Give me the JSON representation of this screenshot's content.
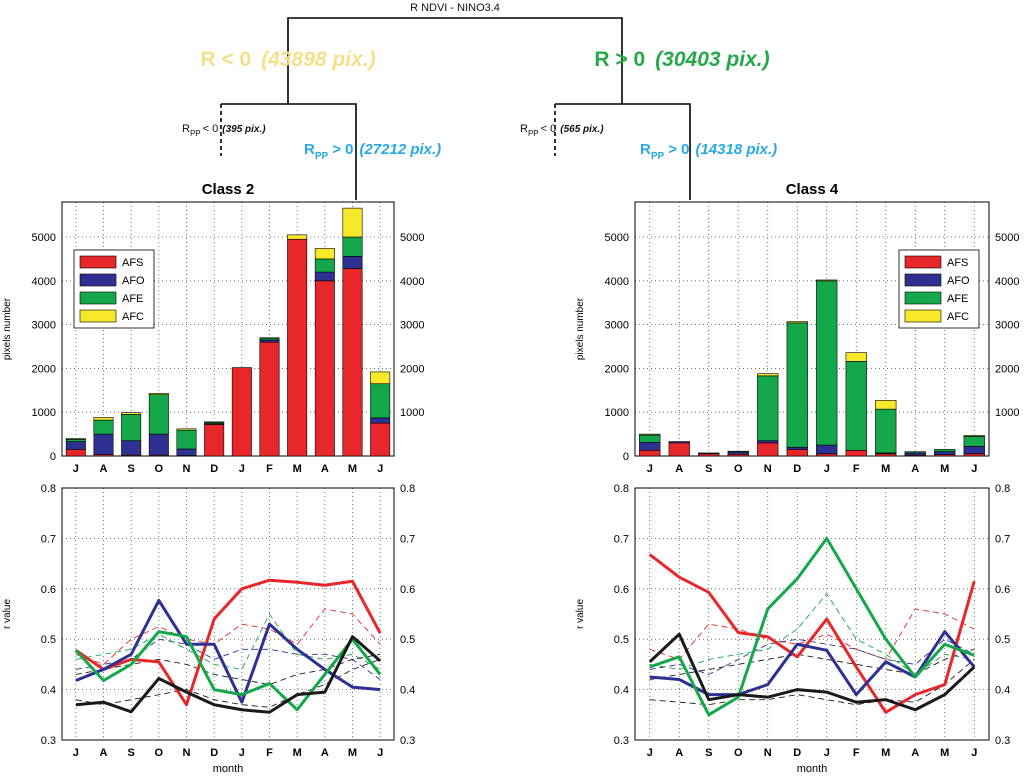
{
  "colors": {
    "AFS": "#e8272a",
    "AFO": "#2e3192",
    "AFE": "#14a84a",
    "AFC": "#f7e82a",
    "black": "#1a1a1a",
    "negative": "#f5e08a",
    "positive": "#24a84a",
    "rpp": "#27a9e1"
  },
  "tree": {
    "root": "R NDVI - NINO3.4",
    "left": {
      "label": "R < 0",
      "count": "(43898 pix.)"
    },
    "right": {
      "label": "R > 0",
      "count": "(30403 pix.)"
    },
    "left_neg": {
      "r": "R",
      "sub": "PP",
      "rest": "< 0",
      "count": "(395 pix.)"
    },
    "left_pos": {
      "r": "R",
      "sub": "PP",
      "rest": "> 0",
      "count": "(27212 pix.)"
    },
    "right_neg": {
      "r": "R",
      "sub": "PP",
      "rest": "< 0",
      "count": "(565 pix.)"
    },
    "right_pos": {
      "r": "R",
      "sub": "PP",
      "rest": "> 0",
      "count": "(14318 pix.)"
    }
  },
  "chart_data": [
    {
      "type": "bar",
      "title": "Class 2",
      "ylabel": "pixels number",
      "ylim": [
        0,
        5800
      ],
      "yticks": [
        0,
        1000,
        2000,
        3000,
        4000,
        5000
      ],
      "right_yticks": [
        1000,
        2000,
        3000,
        4000,
        5000
      ],
      "categories": [
        "J",
        "A",
        "S",
        "O",
        "N",
        "D",
        "J",
        "F",
        "M",
        "A",
        "M",
        "J"
      ],
      "legend": "upper-left",
      "series": [
        {
          "name": "AFS",
          "values": [
            150,
            30,
            20,
            20,
            10,
            720,
            2020,
            2600,
            4950,
            4000,
            4280,
            750
          ]
        },
        {
          "name": "AFO",
          "values": [
            180,
            470,
            330,
            480,
            150,
            20,
            0,
            50,
            0,
            200,
            280,
            120
          ]
        },
        {
          "name": "AFE",
          "values": [
            50,
            320,
            600,
            900,
            430,
            30,
            0,
            40,
            0,
            300,
            440,
            780
          ]
        },
        {
          "name": "AFC",
          "values": [
            20,
            60,
            40,
            30,
            30,
            10,
            0,
            10,
            100,
            240,
            660,
            270
          ]
        }
      ]
    },
    {
      "type": "bar",
      "title": "Class 4",
      "ylabel": "pixels number",
      "ylim": [
        0,
        5800
      ],
      "yticks": [
        0,
        1000,
        2000,
        3000,
        4000,
        5000
      ],
      "right_yticks": [
        1000,
        2000,
        3000,
        4000,
        5000
      ],
      "categories": [
        "J",
        "A",
        "S",
        "O",
        "N",
        "D",
        "J",
        "F",
        "M",
        "A",
        "M",
        "J"
      ],
      "legend": "upper-right",
      "series": [
        {
          "name": "AFS",
          "values": [
            130,
            300,
            50,
            40,
            300,
            150,
            50,
            130,
            50,
            20,
            30,
            50
          ]
        },
        {
          "name": "AFO",
          "values": [
            180,
            30,
            20,
            50,
            50,
            50,
            200,
            0,
            20,
            50,
            70,
            170
          ]
        },
        {
          "name": "AFE",
          "values": [
            170,
            0,
            0,
            20,
            1480,
            2840,
            3750,
            2030,
            1000,
            30,
            50,
            230
          ]
        },
        {
          "name": "AFC",
          "values": [
            20,
            0,
            0,
            0,
            50,
            30,
            20,
            200,
            200,
            0,
            0,
            20
          ]
        }
      ]
    },
    {
      "type": "line",
      "xlabel": "month",
      "ylabel": "r value",
      "ylim": [
        0.3,
        0.8
      ],
      "yticks": [
        0.3,
        0.4,
        0.5,
        0.6,
        0.7,
        0.8
      ],
      "right_yticks": [
        0.3,
        0.4,
        0.5,
        0.6,
        0.7,
        0.8
      ],
      "categories": [
        "J",
        "A",
        "S",
        "O",
        "N",
        "D",
        "J",
        "F",
        "M",
        "A",
        "M",
        "J"
      ],
      "series": [
        {
          "name": "AFS",
          "color": "AFS",
          "style": "solid",
          "values": [
            0.478,
            0.44,
            0.46,
            0.455,
            0.37,
            0.54,
            0.6,
            0.617,
            0.613,
            0.607,
            0.615,
            0.512
          ]
        },
        {
          "name": "AFO",
          "color": "AFO",
          "style": "solid",
          "values": [
            0.418,
            0.44,
            0.47,
            0.577,
            0.49,
            0.49,
            0.375,
            0.53,
            0.48,
            0.44,
            0.405,
            0.4
          ]
        },
        {
          "name": "AFE",
          "color": "AFE",
          "style": "solid",
          "values": [
            0.478,
            0.418,
            0.45,
            0.515,
            0.505,
            0.4,
            0.39,
            0.412,
            0.36,
            0.43,
            0.5,
            0.43
          ]
        },
        {
          "name": "AFC",
          "color": "black",
          "style": "solid",
          "values": [
            0.37,
            0.375,
            0.356,
            0.422,
            0.395,
            0.37,
            0.36,
            0.355,
            0.39,
            0.395,
            0.505,
            0.457
          ]
        },
        {
          "name": "AFS",
          "color": "AFS",
          "style": "dashed",
          "values": [
            0.47,
            0.45,
            0.5,
            0.525,
            0.5,
            0.49,
            0.53,
            0.52,
            0.49,
            0.56,
            0.55,
            0.49
          ]
        },
        {
          "name": "AFO",
          "color": "AFO",
          "style": "dashed",
          "values": [
            0.44,
            0.45,
            0.46,
            0.5,
            0.49,
            0.46,
            0.48,
            0.48,
            0.47,
            0.47,
            0.46,
            0.42
          ]
        },
        {
          "name": "AFE",
          "color": "AFE",
          "style": "dashed",
          "values": [
            0.46,
            0.47,
            0.48,
            0.51,
            0.48,
            0.45,
            0.44,
            0.55,
            0.47,
            0.46,
            0.47,
            0.44
          ]
        },
        {
          "name": "AFC",
          "color": "black",
          "style": "dashed",
          "values": [
            0.38,
            0.37,
            0.38,
            0.39,
            0.4,
            0.38,
            0.37,
            0.365,
            0.39,
            0.41,
            0.44,
            0.46
          ]
        },
        {
          "name": "AFC",
          "color": "black",
          "style": "dashed",
          "values": [
            0.43,
            0.44,
            0.45,
            0.46,
            0.45,
            0.43,
            0.42,
            0.41,
            0.43,
            0.44,
            0.46,
            0.47
          ]
        }
      ]
    },
    {
      "type": "line",
      "xlabel": "month",
      "ylabel": "r value",
      "ylim": [
        0.3,
        0.8
      ],
      "yticks": [
        0.3,
        0.4,
        0.5,
        0.6,
        0.7,
        0.8
      ],
      "right_yticks": [
        0.3,
        0.4,
        0.5,
        0.6,
        0.7,
        0.8
      ],
      "categories": [
        "J",
        "A",
        "S",
        "O",
        "N",
        "D",
        "J",
        "F",
        "M",
        "A",
        "M",
        "J"
      ],
      "series": [
        {
          "name": "AFS",
          "color": "AFS",
          "style": "solid",
          "values": [
            0.668,
            0.623,
            0.593,
            0.513,
            0.505,
            0.465,
            0.54,
            0.445,
            0.355,
            0.39,
            0.41,
            0.615
          ]
        },
        {
          "name": "AFO",
          "color": "AFO",
          "style": "solid",
          "values": [
            0.425,
            0.42,
            0.39,
            0.39,
            0.41,
            0.49,
            0.478,
            0.39,
            0.455,
            0.425,
            0.515,
            0.445
          ]
        },
        {
          "name": "AFE",
          "color": "AFE",
          "style": "solid",
          "values": [
            0.445,
            0.465,
            0.35,
            0.385,
            0.56,
            0.62,
            0.7,
            0.6,
            0.5,
            0.425,
            0.49,
            0.468
          ]
        },
        {
          "name": "AFC",
          "color": "black",
          "style": "solid",
          "values": [
            0.455,
            0.51,
            0.38,
            0.39,
            0.385,
            0.4,
            0.395,
            0.375,
            0.38,
            0.36,
            0.39,
            0.445
          ]
        },
        {
          "name": "AFS",
          "color": "AFS",
          "style": "dashed",
          "values": [
            0.48,
            0.46,
            0.53,
            0.52,
            0.5,
            0.49,
            0.51,
            0.48,
            0.46,
            0.56,
            0.55,
            0.52
          ]
        },
        {
          "name": "AFO",
          "color": "AFO",
          "style": "dashed",
          "values": [
            0.44,
            0.45,
            0.43,
            0.46,
            0.49,
            0.5,
            0.49,
            0.48,
            0.46,
            0.45,
            0.5,
            0.47
          ]
        },
        {
          "name": "AFE",
          "color": "AFE",
          "style": "dashed",
          "values": [
            0.45,
            0.44,
            0.46,
            0.47,
            0.48,
            0.52,
            0.59,
            0.5,
            0.47,
            0.43,
            0.47,
            0.46
          ]
        },
        {
          "name": "AFC",
          "color": "black",
          "style": "dashed",
          "values": [
            0.38,
            0.375,
            0.37,
            0.38,
            0.38,
            0.39,
            0.38,
            0.37,
            0.38,
            0.375,
            0.41,
            0.46
          ]
        },
        {
          "name": "AFC",
          "color": "black",
          "style": "dashed",
          "values": [
            0.42,
            0.43,
            0.44,
            0.45,
            0.46,
            0.47,
            0.46,
            0.45,
            0.44,
            0.43,
            0.46,
            0.48
          ]
        }
      ]
    }
  ]
}
